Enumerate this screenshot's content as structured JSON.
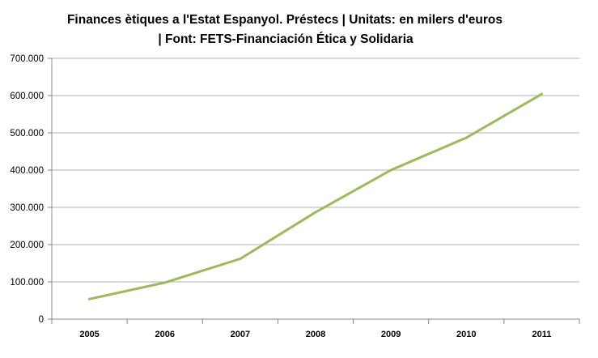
{
  "chart_data": {
    "type": "line",
    "title_line1": "Finances ètiques a l'Estat Espanyol. Préstecs  |  Unitats: en milers d'euros",
    "title_line2": "|  Font: FETS-Financiación Ética y Solidaria",
    "xlabel": "",
    "ylabel": "",
    "categories": [
      "2005",
      "2006",
      "2007",
      "2008",
      "2009",
      "2010",
      "2011"
    ],
    "series": [
      {
        "values": [
          54000,
          98000,
          162000,
          287000,
          400000,
          487000,
          604000
        ]
      }
    ],
    "ylim": [
      0,
      700000
    ],
    "yticks": [
      {
        "value": 0,
        "label": "0"
      },
      {
        "value": 100000,
        "label": "100.000"
      },
      {
        "value": 200000,
        "label": "200.000"
      },
      {
        "value": 300000,
        "label": "300.000"
      },
      {
        "value": 400000,
        "label": "400.000"
      },
      {
        "value": 500000,
        "label": "500.000"
      },
      {
        "value": 600000,
        "label": "600.000"
      },
      {
        "value": 700000,
        "label": "700.000"
      }
    ],
    "grid": true,
    "legend": "none",
    "line_color": "#9bbb59",
    "grid_color": "#b3b3b3",
    "axis_color": "#888888"
  }
}
